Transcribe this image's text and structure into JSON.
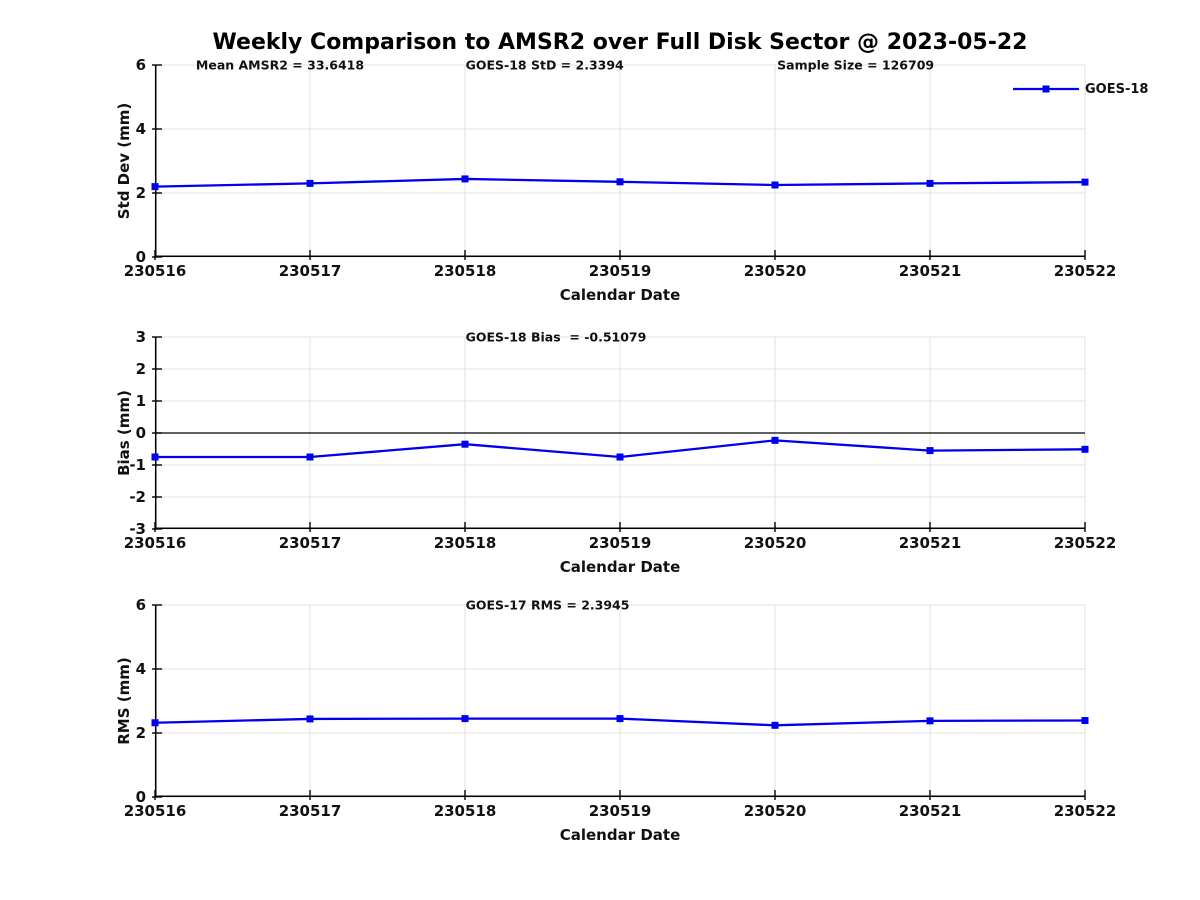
{
  "figure": {
    "title": "Weekly Comparison to AMSR2 over Full Disk Sector @ 2023-05-22"
  },
  "legend": {
    "label": "GOES-18"
  },
  "colors": {
    "line": "#0000EE",
    "grid": "#E0E0E0",
    "axis": "#000000",
    "zero_line": "#000000",
    "text": "#111111"
  },
  "chart_data": [
    {
      "type": "line",
      "panel": "std-dev",
      "annotations": [
        "Mean AMSR2 = 33.6418",
        "GOES-18 StD = 2.3394",
        "Sample Size = 126709"
      ],
      "ylabel": "Std Dev (mm)",
      "xlabel": "Calendar Date",
      "categories": [
        "230516",
        "230517",
        "230518",
        "230519",
        "230520",
        "230521",
        "230522"
      ],
      "series": [
        {
          "name": "GOES-18",
          "values": [
            2.2,
            2.3,
            2.44,
            2.35,
            2.25,
            2.3,
            2.34
          ]
        }
      ],
      "ylim": [
        0,
        6
      ],
      "yticks": [
        0,
        2,
        4,
        6
      ],
      "grid": true,
      "legend_position": "top-right"
    },
    {
      "type": "line",
      "panel": "bias",
      "annotations": [
        "GOES-18 Bias  = -0.51079"
      ],
      "ylabel": "Bias (mm)",
      "xlabel": "Calendar Date",
      "categories": [
        "230516",
        "230517",
        "230518",
        "230519",
        "230520",
        "230521",
        "230522"
      ],
      "series": [
        {
          "name": "GOES-18",
          "values": [
            -0.75,
            -0.75,
            -0.35,
            -0.75,
            -0.23,
            -0.55,
            -0.51
          ]
        }
      ],
      "ylim": [
        -3,
        3
      ],
      "yticks": [
        -3,
        -2,
        -1,
        0,
        1,
        2,
        3
      ],
      "zero_line": true,
      "grid": true
    },
    {
      "type": "line",
      "panel": "rms",
      "annotations": [
        "GOES-17 RMS = 2.3945"
      ],
      "ylabel": "RMS (mm)",
      "xlabel": "Calendar Date",
      "categories": [
        "230516",
        "230517",
        "230518",
        "230519",
        "230520",
        "230521",
        "230522"
      ],
      "series": [
        {
          "name": "GOES-18",
          "values": [
            2.32,
            2.44,
            2.45,
            2.45,
            2.24,
            2.38,
            2.39
          ]
        }
      ],
      "ylim": [
        0,
        6
      ],
      "yticks": [
        0,
        2,
        4,
        6
      ],
      "grid": true
    }
  ]
}
